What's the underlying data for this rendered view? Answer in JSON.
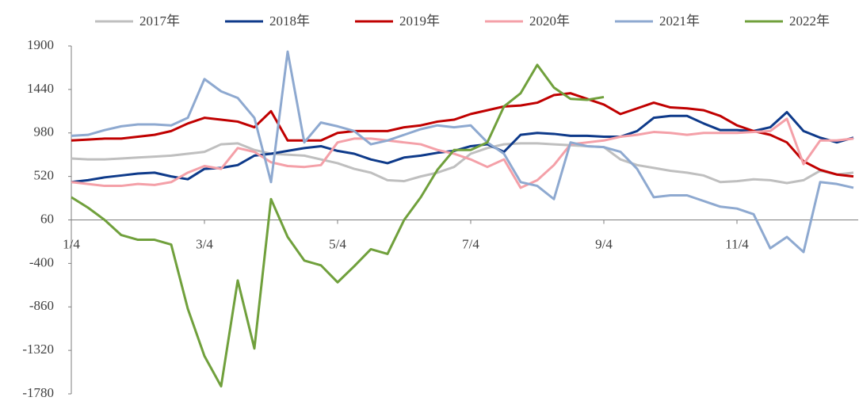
{
  "chart_data": {
    "type": "line",
    "categories": [
      "1/4",
      null,
      null,
      null,
      null,
      null,
      null,
      null,
      "3/4",
      null,
      null,
      null,
      null,
      null,
      null,
      null,
      "5/4",
      null,
      null,
      null,
      null,
      null,
      null,
      null,
      "7/4",
      null,
      null,
      null,
      null,
      null,
      null,
      null,
      "9/4",
      null,
      null,
      null,
      null,
      null,
      null,
      null,
      "11/4",
      null,
      null,
      null,
      null,
      null,
      null,
      null
    ],
    "series": [
      {
        "name": "2017年",
        "color": "#bfbfbf",
        "values": [
          710,
          700,
          700,
          710,
          720,
          730,
          740,
          760,
          780,
          860,
          870,
          800,
          760,
          750,
          740,
          700,
          660,
          600,
          560,
          480,
          470,
          520,
          560,
          620,
          760,
          820,
          860,
          870,
          870,
          860,
          850,
          840,
          830,
          700,
          640,
          610,
          580,
          560,
          530,
          460,
          470,
          490,
          480,
          450,
          480,
          580,
          540,
          560
        ]
      },
      {
        "name": "2018年",
        "color": "#0e3a8a",
        "values": [
          460,
          480,
          510,
          530,
          550,
          560,
          520,
          490,
          600,
          610,
          640,
          740,
          760,
          790,
          820,
          840,
          790,
          760,
          700,
          660,
          720,
          740,
          770,
          790,
          840,
          860,
          780,
          960,
          980,
          970,
          950,
          950,
          940,
          940,
          1000,
          1140,
          1160,
          1160,
          1080,
          1010,
          1010,
          1000,
          1040,
          1200,
          1000,
          930,
          880,
          930
        ]
      },
      {
        "name": "2019年",
        "color": "#c00000",
        "values": [
          900,
          910,
          920,
          920,
          940,
          960,
          1000,
          1080,
          1140,
          1120,
          1100,
          1040,
          1210,
          900,
          900,
          900,
          980,
          1000,
          1000,
          1000,
          1040,
          1060,
          1100,
          1120,
          1180,
          1220,
          1260,
          1270,
          1300,
          1380,
          1400,
          1340,
          1280,
          1180,
          1240,
          1300,
          1250,
          1240,
          1220,
          1160,
          1060,
          1000,
          960,
          880,
          680,
          590,
          540,
          520
        ]
      },
      {
        "name": "2020年",
        "color": "#f4a0a8",
        "values": [
          460,
          440,
          420,
          420,
          440,
          430,
          460,
          560,
          630,
          600,
          820,
          780,
          670,
          630,
          620,
          640,
          880,
          920,
          920,
          900,
          880,
          860,
          800,
          760,
          700,
          620,
          700,
          400,
          480,
          640,
          860,
          880,
          900,
          940,
          960,
          990,
          980,
          960,
          980,
          980,
          980,
          990,
          1000,
          1130,
          650,
          900,
          900,
          920
        ]
      },
      {
        "name": "2021年",
        "color": "#8ea9d0",
        "values": [
          950,
          960,
          1010,
          1050,
          1070,
          1070,
          1060,
          1140,
          1550,
          1420,
          1350,
          1140,
          460,
          1840,
          880,
          1090,
          1050,
          1000,
          860,
          900,
          960,
          1020,
          1060,
          1040,
          1060,
          880,
          760,
          460,
          420,
          280,
          880,
          840,
          830,
          780,
          600,
          300,
          320,
          320,
          260,
          200,
          180,
          120,
          -240,
          -120,
          -280,
          460,
          440,
          400
        ]
      },
      {
        "name": "2022年",
        "color": "#70a03c",
        "values": [
          300,
          190,
          60,
          -100,
          -150,
          -150,
          -200,
          -880,
          -1380,
          -1700,
          -580,
          -1300,
          280,
          -120,
          -370,
          -420,
          -600,
          -430,
          -250,
          -300,
          60,
          300,
          590,
          800,
          800,
          880,
          1260,
          1400,
          1700,
          1460,
          1340,
          1330,
          1360,
          null,
          null,
          null,
          null,
          null,
          null,
          null,
          null,
          null,
          null,
          null,
          null,
          null,
          null,
          null
        ]
      }
    ],
    "ylim": [
      -1780,
      1900
    ],
    "yticks": [
      1900,
      1440,
      980,
      520,
      60,
      -400,
      -860,
      -1320,
      -1780
    ],
    "x_axis_crossing": 60,
    "grid": false,
    "legend": "top"
  }
}
